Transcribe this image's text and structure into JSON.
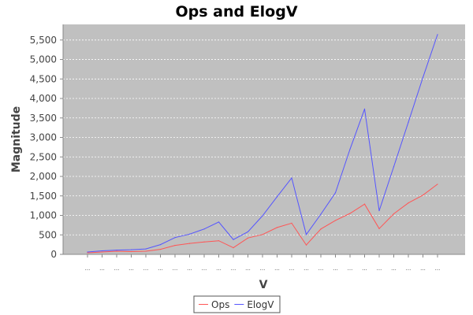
{
  "chart_data": {
    "type": "line",
    "title": "Ops and ElogV",
    "xlabel": "V",
    "ylabel": "Magnitude",
    "ylim": [
      0,
      5900
    ],
    "yticks": [
      0,
      500,
      1000,
      1500,
      2000,
      2500,
      3000,
      3500,
      4000,
      4500,
      5000,
      5500
    ],
    "ytick_labels": [
      "0",
      "500",
      "1,000",
      "1,500",
      "2,000",
      "2,500",
      "3,000",
      "3,500",
      "4,000",
      "4,500",
      "5,000",
      "5,500"
    ],
    "categories": [
      "...",
      "...",
      "...",
      "...",
      "...",
      "...",
      "...",
      "...",
      "...",
      "...",
      "...",
      "...",
      "...",
      "...",
      "...",
      "...",
      "...",
      "...",
      "...",
      "...",
      "...",
      "...",
      "...",
      "...",
      "..."
    ],
    "grid": true,
    "legend": "bottom",
    "series": [
      {
        "name": "Ops",
        "color": "#ff5555",
        "values": [
          40,
          60,
          80,
          70,
          80,
          130,
          230,
          280,
          320,
          350,
          170,
          420,
          510,
          690,
          800,
          240,
          650,
          870,
          1050,
          1290,
          660,
          1040,
          1320,
          1520,
          1800
        ]
      },
      {
        "name": "ElogV",
        "color": "#5555ff",
        "values": [
          60,
          90,
          110,
          120,
          140,
          250,
          430,
          520,
          650,
          830,
          380,
          580,
          990,
          1480,
          1960,
          510,
          1030,
          1580,
          2700,
          3730,
          1120,
          2250,
          3390,
          4540,
          5640
        ]
      }
    ]
  }
}
